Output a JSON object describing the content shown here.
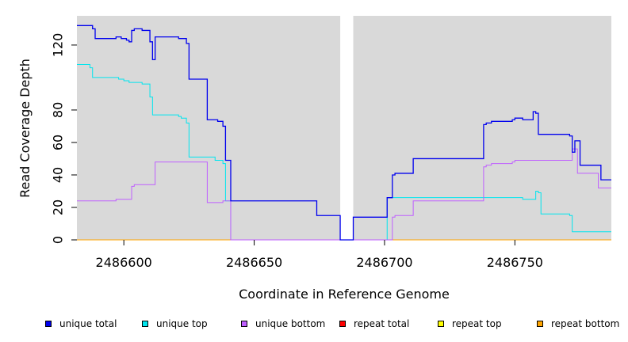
{
  "chart_data": {
    "type": "line",
    "title": "",
    "xlabel": "Coordinate in Reference Genome",
    "ylabel": "Read Coverage Depth",
    "xlim": [
      2486582,
      2486787
    ],
    "ylim": [
      0,
      138
    ],
    "x_ticks": [
      2486600,
      2486650,
      2486700,
      2486750
    ],
    "x_tick_labels": [
      "2486600",
      "2486650",
      "2486700",
      "2486750"
    ],
    "y_ticks": [
      0,
      20,
      40,
      60,
      80,
      120
    ],
    "y_tick_labels": [
      "0",
      "20",
      "40",
      "60",
      "80",
      "120"
    ],
    "background": "#d9d9d9",
    "gap_region": [
      2486683,
      2486688
    ],
    "gap_color": "#ffffff",
    "legend_position": "bottom",
    "series": [
      {
        "name": "unique total",
        "color": "#0000ee",
        "points": [
          [
            2486582,
            132
          ],
          [
            2486588,
            132
          ],
          [
            2486588,
            130
          ],
          [
            2486589,
            130
          ],
          [
            2486589,
            124
          ],
          [
            2486597,
            124
          ],
          [
            2486597,
            125
          ],
          [
            2486599,
            125
          ],
          [
            2486599,
            124
          ],
          [
            2486601,
            124
          ],
          [
            2486601,
            123
          ],
          [
            2486602,
            123
          ],
          [
            2486602,
            122
          ],
          [
            2486603,
            122
          ],
          [
            2486603,
            129
          ],
          [
            2486604,
            129
          ],
          [
            2486604,
            130
          ],
          [
            2486607,
            130
          ],
          [
            2486607,
            129
          ],
          [
            2486610,
            129
          ],
          [
            2486610,
            122
          ],
          [
            2486611,
            122
          ],
          [
            2486611,
            111
          ],
          [
            2486612,
            111
          ],
          [
            2486612,
            125
          ],
          [
            2486621,
            125
          ],
          [
            2486621,
            124
          ],
          [
            2486624,
            124
          ],
          [
            2486624,
            121
          ],
          [
            2486625,
            121
          ],
          [
            2486625,
            99
          ],
          [
            2486632,
            99
          ],
          [
            2486632,
            74
          ],
          [
            2486636,
            74
          ],
          [
            2486636,
            73
          ],
          [
            2486638,
            73
          ],
          [
            2486638,
            70
          ],
          [
            2486639,
            70
          ],
          [
            2486639,
            49
          ],
          [
            2486641,
            49
          ],
          [
            2486641,
            24
          ],
          [
            2486674,
            24
          ],
          [
            2486674,
            15
          ],
          [
            2486683,
            15
          ],
          [
            2486683,
            0
          ],
          [
            2486688,
            0
          ],
          [
            2486688,
            14
          ],
          [
            2486701,
            14
          ],
          [
            2486701,
            26
          ],
          [
            2486703,
            26
          ],
          [
            2486703,
            40
          ],
          [
            2486704,
            40
          ],
          [
            2486704,
            41
          ],
          [
            2486711,
            41
          ],
          [
            2486711,
            50
          ],
          [
            2486738,
            50
          ],
          [
            2486738,
            71
          ],
          [
            2486739,
            71
          ],
          [
            2486739,
            72
          ],
          [
            2486741,
            72
          ],
          [
            2486741,
            73
          ],
          [
            2486749,
            73
          ],
          [
            2486749,
            74
          ],
          [
            2486750,
            74
          ],
          [
            2486750,
            75
          ],
          [
            2486753,
            75
          ],
          [
            2486753,
            74
          ],
          [
            2486757,
            74
          ],
          [
            2486757,
            79
          ],
          [
            2486758,
            79
          ],
          [
            2486758,
            78
          ],
          [
            2486759,
            78
          ],
          [
            2486759,
            65
          ],
          [
            2486771,
            65
          ],
          [
            2486771,
            64
          ],
          [
            2486772,
            64
          ],
          [
            2486772,
            54
          ],
          [
            2486773,
            54
          ],
          [
            2486773,
            61
          ],
          [
            2486775,
            61
          ],
          [
            2486775,
            46
          ],
          [
            2486783,
            46
          ],
          [
            2486783,
            37
          ],
          [
            2486787,
            37
          ]
        ]
      },
      {
        "name": "unique top",
        "color": "#00e5ee",
        "points": [
          [
            2486582,
            108
          ],
          [
            2486587,
            108
          ],
          [
            2486587,
            106
          ],
          [
            2486588,
            106
          ],
          [
            2486588,
            100
          ],
          [
            2486598,
            100
          ],
          [
            2486598,
            99
          ],
          [
            2486600,
            99
          ],
          [
            2486600,
            98
          ],
          [
            2486602,
            98
          ],
          [
            2486602,
            97
          ],
          [
            2486607,
            97
          ],
          [
            2486607,
            96
          ],
          [
            2486610,
            96
          ],
          [
            2486610,
            88
          ],
          [
            2486611,
            88
          ],
          [
            2486611,
            77
          ],
          [
            2486621,
            77
          ],
          [
            2486621,
            76
          ],
          [
            2486622,
            76
          ],
          [
            2486622,
            75
          ],
          [
            2486624,
            75
          ],
          [
            2486624,
            72
          ],
          [
            2486625,
            72
          ],
          [
            2486625,
            51
          ],
          [
            2486635,
            51
          ],
          [
            2486635,
            49
          ],
          [
            2486638,
            49
          ],
          [
            2486638,
            47
          ],
          [
            2486639,
            47
          ],
          [
            2486639,
            24
          ],
          [
            2486641,
            24
          ],
          [
            2486641,
            0
          ],
          [
            2486683,
            0
          ],
          [
            2486688,
            0
          ],
          [
            2486701,
            0
          ],
          [
            2486701,
            26
          ],
          [
            2486753,
            26
          ],
          [
            2486753,
            25
          ],
          [
            2486758,
            25
          ],
          [
            2486758,
            30
          ],
          [
            2486759,
            30
          ],
          [
            2486759,
            29
          ],
          [
            2486760,
            29
          ],
          [
            2486760,
            16
          ],
          [
            2486771,
            16
          ],
          [
            2486771,
            15
          ],
          [
            2486772,
            15
          ],
          [
            2486772,
            5
          ],
          [
            2486787,
            5
          ]
        ]
      },
      {
        "name": "unique bottom",
        "color": "#bf5fff",
        "points": [
          [
            2486582,
            24
          ],
          [
            2486597,
            24
          ],
          [
            2486597,
            25
          ],
          [
            2486603,
            25
          ],
          [
            2486603,
            33
          ],
          [
            2486604,
            33
          ],
          [
            2486604,
            34
          ],
          [
            2486612,
            34
          ],
          [
            2486612,
            48
          ],
          [
            2486632,
            48
          ],
          [
            2486632,
            23
          ],
          [
            2486638,
            23
          ],
          [
            2486638,
            24
          ],
          [
            2486641,
            24
          ],
          [
            2486641,
            0
          ],
          [
            2486683,
            0
          ],
          [
            2486688,
            0
          ],
          [
            2486703,
            0
          ],
          [
            2486703,
            14
          ],
          [
            2486704,
            14
          ],
          [
            2486704,
            15
          ],
          [
            2486711,
            15
          ],
          [
            2486711,
            24
          ],
          [
            2486738,
            24
          ],
          [
            2486738,
            45
          ],
          [
            2486739,
            45
          ],
          [
            2486739,
            46
          ],
          [
            2486741,
            46
          ],
          [
            2486741,
            47
          ],
          [
            2486749,
            47
          ],
          [
            2486749,
            48
          ],
          [
            2486750,
            48
          ],
          [
            2486750,
            49
          ],
          [
            2486772,
            49
          ],
          [
            2486772,
            56
          ],
          [
            2486774,
            56
          ],
          [
            2486774,
            41
          ],
          [
            2486782,
            41
          ],
          [
            2486782,
            32
          ],
          [
            2486787,
            32
          ]
        ]
      },
      {
        "name": "repeat total",
        "color": "#ff0000",
        "points": [
          [
            2486582,
            0
          ],
          [
            2486787,
            0
          ]
        ]
      },
      {
        "name": "repeat top",
        "color": "#ffff00",
        "points": [
          [
            2486582,
            0
          ],
          [
            2486787,
            0
          ]
        ]
      },
      {
        "name": "repeat bottom",
        "color": "#ffa500",
        "points": [
          [
            2486582,
            0
          ],
          [
            2486787,
            0
          ]
        ]
      }
    ]
  }
}
